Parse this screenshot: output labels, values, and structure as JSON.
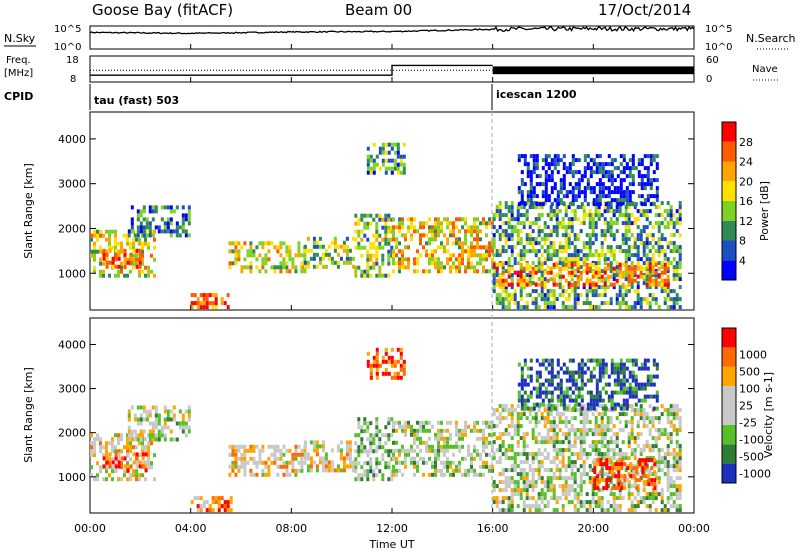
{
  "header": {
    "station": "Goose Bay (fitACF)",
    "beam": "Beam 00",
    "date": "17/Oct/2014"
  },
  "strip_labels": {
    "nsky": "N.Sky",
    "nsearch": "N.Search",
    "freq_line1": "Freq.",
    "freq_line2": "[MHz]",
    "nave": "Nave",
    "cpid": "CPID"
  },
  "strip_ticks": {
    "noise_left": [
      "10^5",
      "10^0"
    ],
    "noise_right": [
      "10^5",
      "10^0"
    ],
    "freq_left": [
      "18",
      "8"
    ],
    "nave_right": [
      "60",
      "0"
    ]
  },
  "chart_data": [
    {
      "type": "line",
      "name": "noise",
      "x_range_hours": [
        0,
        24
      ],
      "series": [
        {
          "label": "N.Sky",
          "style": "solid",
          "values": [
            [
              0,
              3.6
            ],
            [
              4,
              3.4
            ],
            [
              8,
              3.7
            ],
            [
              12,
              3.8
            ],
            [
              16,
              4.3
            ],
            [
              20,
              4.4
            ],
            [
              24,
              4.4
            ]
          ]
        },
        {
          "label": "N.Search",
          "style": "dotted",
          "values": []
        }
      ]
    },
    {
      "type": "line",
      "name": "frequency-nave",
      "x_range_hours": [
        0,
        24
      ],
      "series": [
        {
          "label": "Freq.",
          "style": "solid",
          "values": [
            [
              0,
              10.6
            ],
            [
              12,
              10.6
            ],
            [
              12,
              14.4
            ],
            [
              16,
              14.4
            ]
          ]
        },
        {
          "label": "Nave",
          "style": "dotted",
          "values": [
            [
              0,
              12.5
            ],
            [
              16,
              12.5
            ]
          ]
        }
      ],
      "dense_band": {
        "x": [
          16,
          24
        ],
        "y": [
          11.0,
          14.0
        ]
      }
    },
    {
      "type": "table",
      "name": "cpid",
      "segments": [
        {
          "start": 0,
          "end": 16,
          "label": "tau (fast) 503"
        },
        {
          "start": 16,
          "end": 24,
          "label": "icescan 1200"
        }
      ]
    },
    {
      "type": "heatmap",
      "name": "power",
      "ylabel": "Slant Range [km]",
      "yticks": [
        1000,
        2000,
        3000,
        4000
      ],
      "ylim": [
        180,
        4600
      ],
      "colorbar": {
        "label": "Power [dB]",
        "ticks": [
          "4",
          "8",
          "12",
          "16",
          "20",
          "24",
          "28"
        ],
        "colors": [
          "#0000ff",
          "#1c4fc0",
          "#2e8b57",
          "#7ed221",
          "#ffe100",
          "#ffa500",
          "#ff5a00",
          "#ff0000"
        ]
      },
      "clusters": [
        {
          "t0": 0.0,
          "t1": 2.6,
          "r0": 900,
          "r1": 1900,
          "level": 0.55
        },
        {
          "t0": 0.5,
          "t1": 2.0,
          "r0": 1100,
          "r1": 1500,
          "level": 0.85
        },
        {
          "t0": 1.5,
          "t1": 4.0,
          "r0": 1800,
          "r1": 2500,
          "level": 0.25
        },
        {
          "t0": 4.0,
          "t1": 5.6,
          "r0": 200,
          "r1": 550,
          "level": 0.8
        },
        {
          "t0": 5.5,
          "t1": 8.5,
          "r0": 1000,
          "r1": 1700,
          "level": 0.55
        },
        {
          "t0": 8.5,
          "t1": 10.5,
          "r0": 1100,
          "r1": 1800,
          "level": 0.45
        },
        {
          "t0": 10.5,
          "t1": 12.0,
          "r0": 900,
          "r1": 2300,
          "level": 0.45
        },
        {
          "t0": 11.0,
          "t1": 12.5,
          "r0": 3200,
          "r1": 3900,
          "level": 0.35
        },
        {
          "t0": 12.0,
          "t1": 16.0,
          "r0": 1000,
          "r1": 2200,
          "level": 0.6
        },
        {
          "t0": 16.0,
          "t1": 23.5,
          "r0": 200,
          "r1": 2600,
          "level": 0.35
        },
        {
          "t0": 16.0,
          "t1": 23.0,
          "r0": 700,
          "r1": 1200,
          "level": 0.75
        },
        {
          "t0": 17.0,
          "t1": 22.5,
          "r0": 2500,
          "r1": 3600,
          "level": 0.1
        }
      ]
    },
    {
      "type": "heatmap",
      "name": "velocity",
      "xlabel": "Time UT",
      "xticks": [
        "00:00",
        "04:00",
        "08:00",
        "12:00",
        "16:00",
        "20:00",
        "00:00"
      ],
      "ylabel": "Slant Range [km]",
      "yticks": [
        1000,
        2000,
        3000,
        4000
      ],
      "ylim": [
        180,
        4600
      ],
      "colorbar": {
        "label": "Velocity [m s-1]",
        "ticks": [
          "1000",
          "500",
          "100",
          "25",
          "-25",
          "-100",
          "-500",
          "-1000"
        ],
        "colors": [
          "#1c2fc0",
          "#2e7d32",
          "#56c02a",
          "#c8c8c8",
          "#c8c8c8",
          "#ffa500",
          "#ff6a00",
          "#ff0000"
        ]
      },
      "clusters": [
        {
          "t0": 0.0,
          "t1": 2.6,
          "r0": 900,
          "r1": 1900,
          "level": 0.55
        },
        {
          "t0": 0.5,
          "t1": 2.2,
          "r0": 1100,
          "r1": 1500,
          "level": 0.8
        },
        {
          "t0": 1.5,
          "t1": 4.0,
          "r0": 1800,
          "r1": 2600,
          "level": 0.45
        },
        {
          "t0": 4.0,
          "t1": 5.6,
          "r0": 200,
          "r1": 550,
          "level": 0.8
        },
        {
          "t0": 5.5,
          "t1": 8.5,
          "r0": 1000,
          "r1": 1700,
          "level": 0.6
        },
        {
          "t0": 8.5,
          "t1": 10.5,
          "r0": 1100,
          "r1": 1800,
          "level": 0.55
        },
        {
          "t0": 10.5,
          "t1": 12.0,
          "r0": 900,
          "r1": 2300,
          "level": 0.35
        },
        {
          "t0": 11.0,
          "t1": 12.5,
          "r0": 3200,
          "r1": 3900,
          "level": 0.85
        },
        {
          "t0": 12.0,
          "t1": 16.0,
          "r0": 1000,
          "r1": 2200,
          "level": 0.45
        },
        {
          "t0": 16.0,
          "t1": 23.5,
          "r0": 200,
          "r1": 2600,
          "level": 0.45
        },
        {
          "t0": 20.0,
          "t1": 22.5,
          "r0": 700,
          "r1": 1400,
          "level": 0.85
        },
        {
          "t0": 17.0,
          "t1": 22.5,
          "r0": 2500,
          "r1": 3600,
          "level": 0.1
        }
      ]
    }
  ]
}
